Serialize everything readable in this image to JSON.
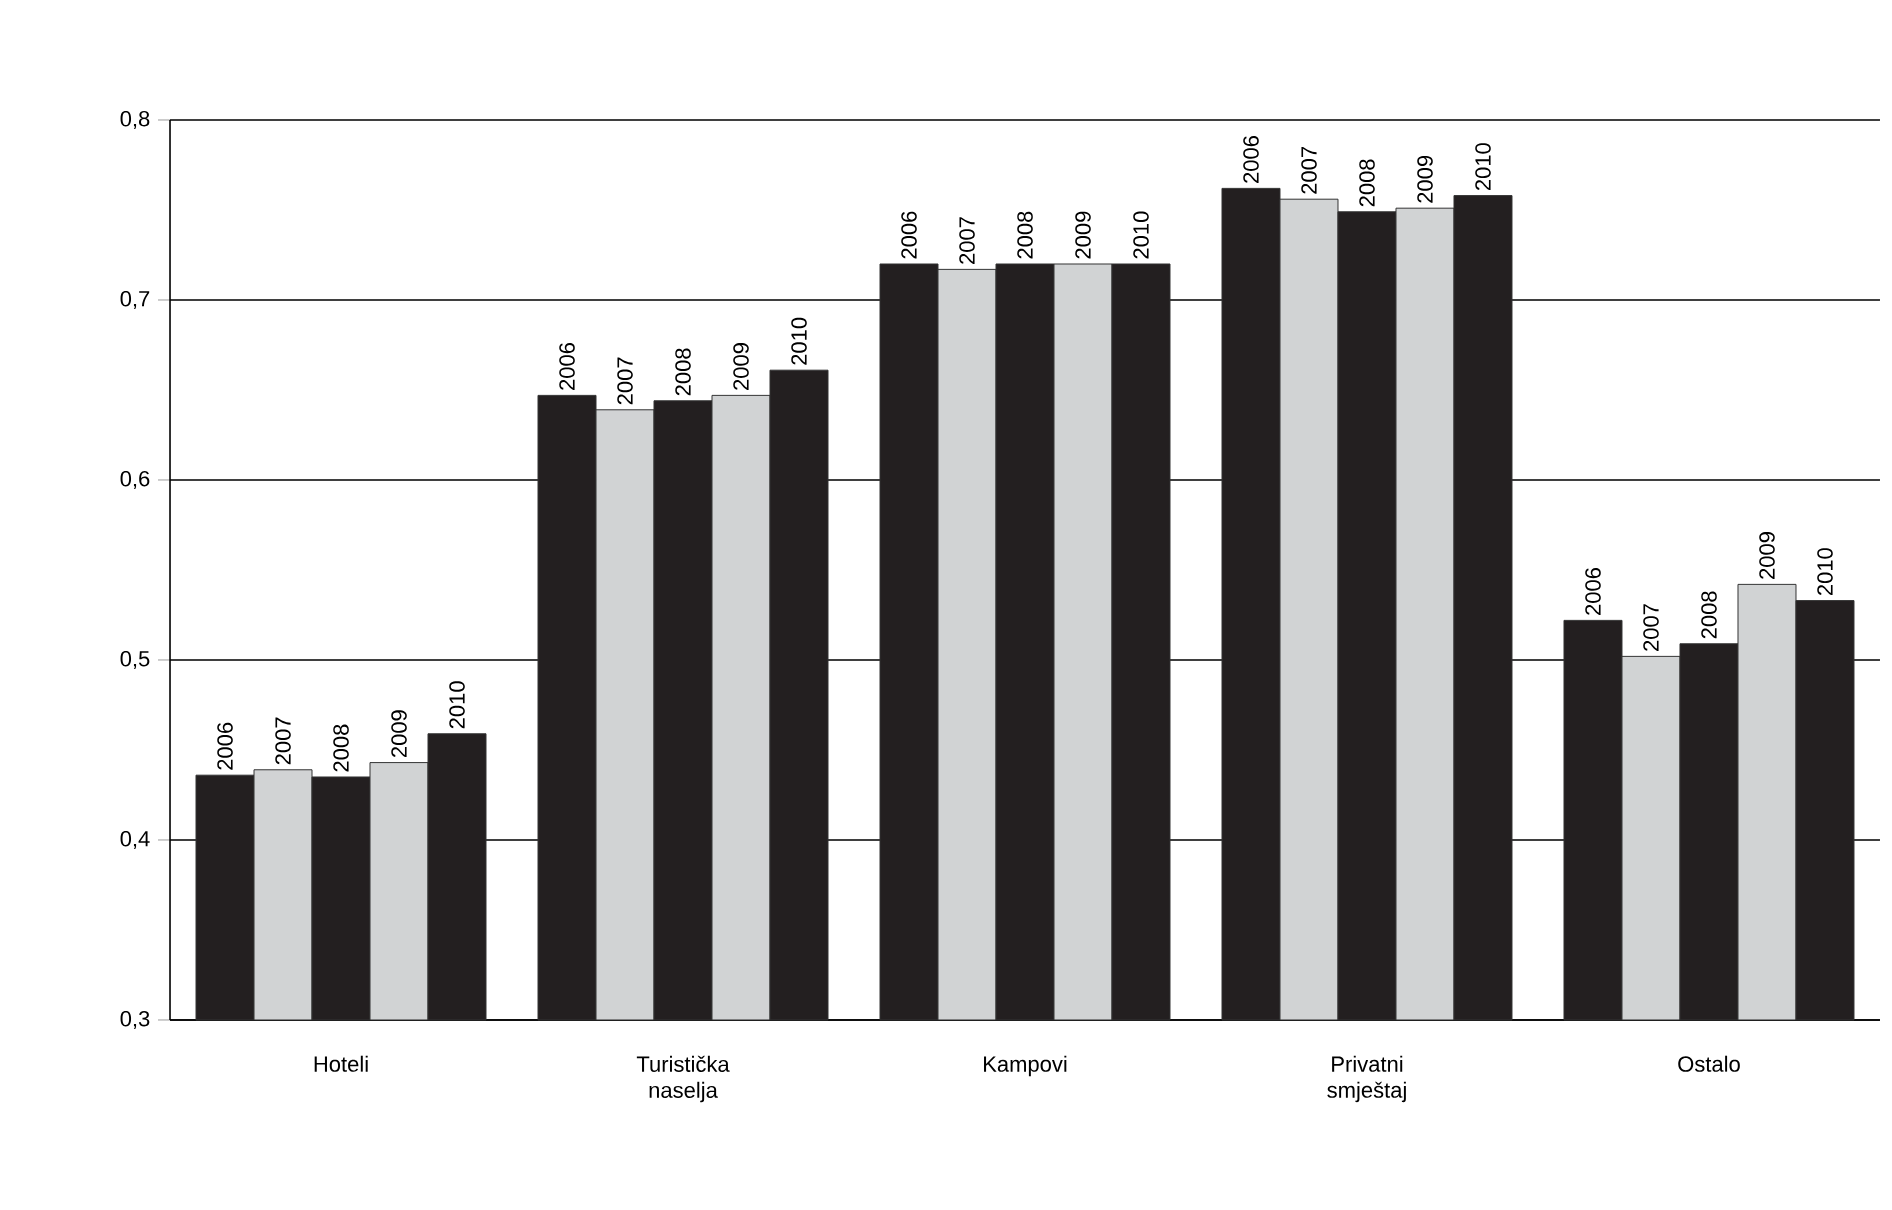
{
  "chart_data": {
    "type": "bar",
    "categories": [
      "Hoteli",
      "Turistička naselja",
      "Kampovi",
      "Privatni smještaj",
      "Ostalo"
    ],
    "series": [
      {
        "name": "2006",
        "color": "#231f20",
        "values": [
          0.436,
          0.647,
          0.72,
          0.762,
          0.522
        ]
      },
      {
        "name": "2007",
        "color": "#d1d3d4",
        "values": [
          0.439,
          0.639,
          0.717,
          0.756,
          0.502
        ]
      },
      {
        "name": "2008",
        "color": "#231f20",
        "values": [
          0.435,
          0.644,
          0.72,
          0.749,
          0.509
        ]
      },
      {
        "name": "2009",
        "color": "#d1d3d4",
        "values": [
          0.443,
          0.647,
          0.72,
          0.751,
          0.542
        ]
      },
      {
        "name": "2010",
        "color": "#231f20",
        "values": [
          0.459,
          0.661,
          0.72,
          0.758,
          0.533
        ]
      }
    ],
    "ylim": [
      0.3,
      0.8
    ],
    "yticks": [
      {
        "value": 0.3,
        "label": "0,3"
      },
      {
        "value": 0.4,
        "label": "0,4"
      },
      {
        "value": 0.5,
        "label": "0,5"
      },
      {
        "value": 0.6,
        "label": "0,6"
      },
      {
        "value": 0.7,
        "label": "0,7"
      },
      {
        "value": 0.8,
        "label": "0,8"
      }
    ],
    "grid": "y"
  }
}
